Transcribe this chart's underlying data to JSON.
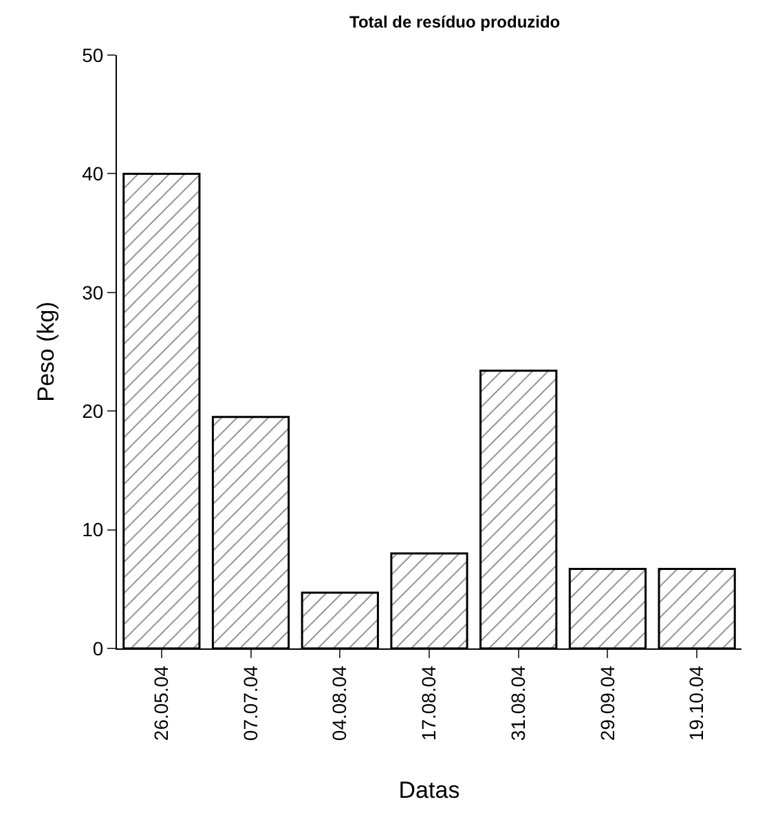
{
  "chart_data": {
    "type": "bar",
    "title": "Total de resíduo produzido",
    "xlabel": "Datas",
    "ylabel": "Peso (kg)",
    "categories": [
      "26.05.04",
      "07.07.04",
      "04.08.04",
      "17.08.04",
      "31.08.04",
      "29.09.04",
      "19.10.04"
    ],
    "values": [
      40,
      19.5,
      4.7,
      8,
      23.4,
      6.7,
      6.7
    ],
    "color": "#000000",
    "ylim": [
      0,
      50
    ],
    "yticks": [
      0,
      10,
      20,
      30,
      40,
      50
    ],
    "legend": false
  }
}
